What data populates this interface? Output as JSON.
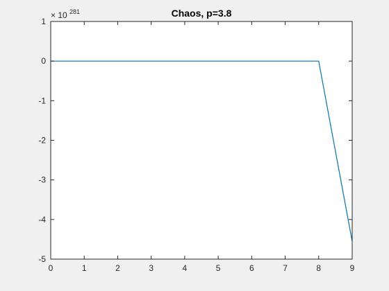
{
  "chart_data": {
    "type": "line",
    "title": "Chaos, p=3.8",
    "xlabel": "",
    "ylabel": "",
    "xlim": [
      0,
      9
    ],
    "ylim": [
      -5,
      1
    ],
    "x_ticks": [
      "0",
      "1",
      "2",
      "3",
      "4",
      "5",
      "6",
      "7",
      "8",
      "9"
    ],
    "y_ticks": [
      "1",
      "0",
      "-1",
      "-2",
      "-3",
      "-4",
      "-5"
    ],
    "y_scale_base": "× 10",
    "y_scale_exponent": "281",
    "grid": false,
    "legend": false,
    "series": [
      {
        "color": "#0072bd",
        "x": [
          0,
          1,
          2,
          3,
          4,
          5,
          6,
          7,
          8,
          9
        ],
        "y": [
          0,
          0,
          0,
          0,
          0,
          0,
          0,
          0,
          0,
          -4.55
        ]
      }
    ]
  },
  "colors": {
    "figure_background": "#f0f0f0",
    "axes_background": "#ffffff",
    "axes_color": "#262626",
    "line_color": "#0072bd"
  }
}
